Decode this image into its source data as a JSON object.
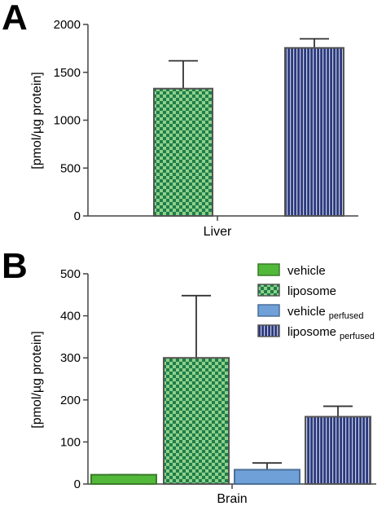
{
  "panels": [
    {
      "letter": "A",
      "chart_data": {
        "type": "bar",
        "ylabel": "[pmol/µg protein]",
        "ylim": [
          0,
          2000
        ],
        "yticks": [
          0,
          500,
          1000,
          1500,
          2000
        ],
        "category": "Liver",
        "bars": [
          {
            "style": "liposome",
            "value": 1330,
            "error": 290
          },
          {
            "style": "liposome_perfused",
            "value": 1755,
            "error": 95
          }
        ]
      }
    },
    {
      "letter": "B",
      "chart_data": {
        "type": "bar",
        "ylabel": "[pmol/µg protein]",
        "ylim": [
          0,
          500
        ],
        "yticks": [
          0,
          100,
          200,
          300,
          400,
          500
        ],
        "category": "Brain",
        "bars": [
          {
            "style": "vehicle",
            "value": 22,
            "error": 0
          },
          {
            "style": "liposome",
            "value": 300,
            "error": 148
          },
          {
            "style": "vehicle_perfused",
            "value": 34,
            "error": 16
          },
          {
            "style": "liposome_perfused",
            "value": 160,
            "error": 25
          }
        ],
        "legend": [
          {
            "style": "vehicle",
            "label": "vehicle",
            "sub": ""
          },
          {
            "style": "liposome",
            "label": "liposome",
            "sub": ""
          },
          {
            "style": "vehicle_perfused",
            "label": "vehicle",
            "sub": "perfused"
          },
          {
            "style": "liposome_perfused",
            "label": "liposome",
            "sub": "perfused"
          }
        ]
      }
    }
  ]
}
